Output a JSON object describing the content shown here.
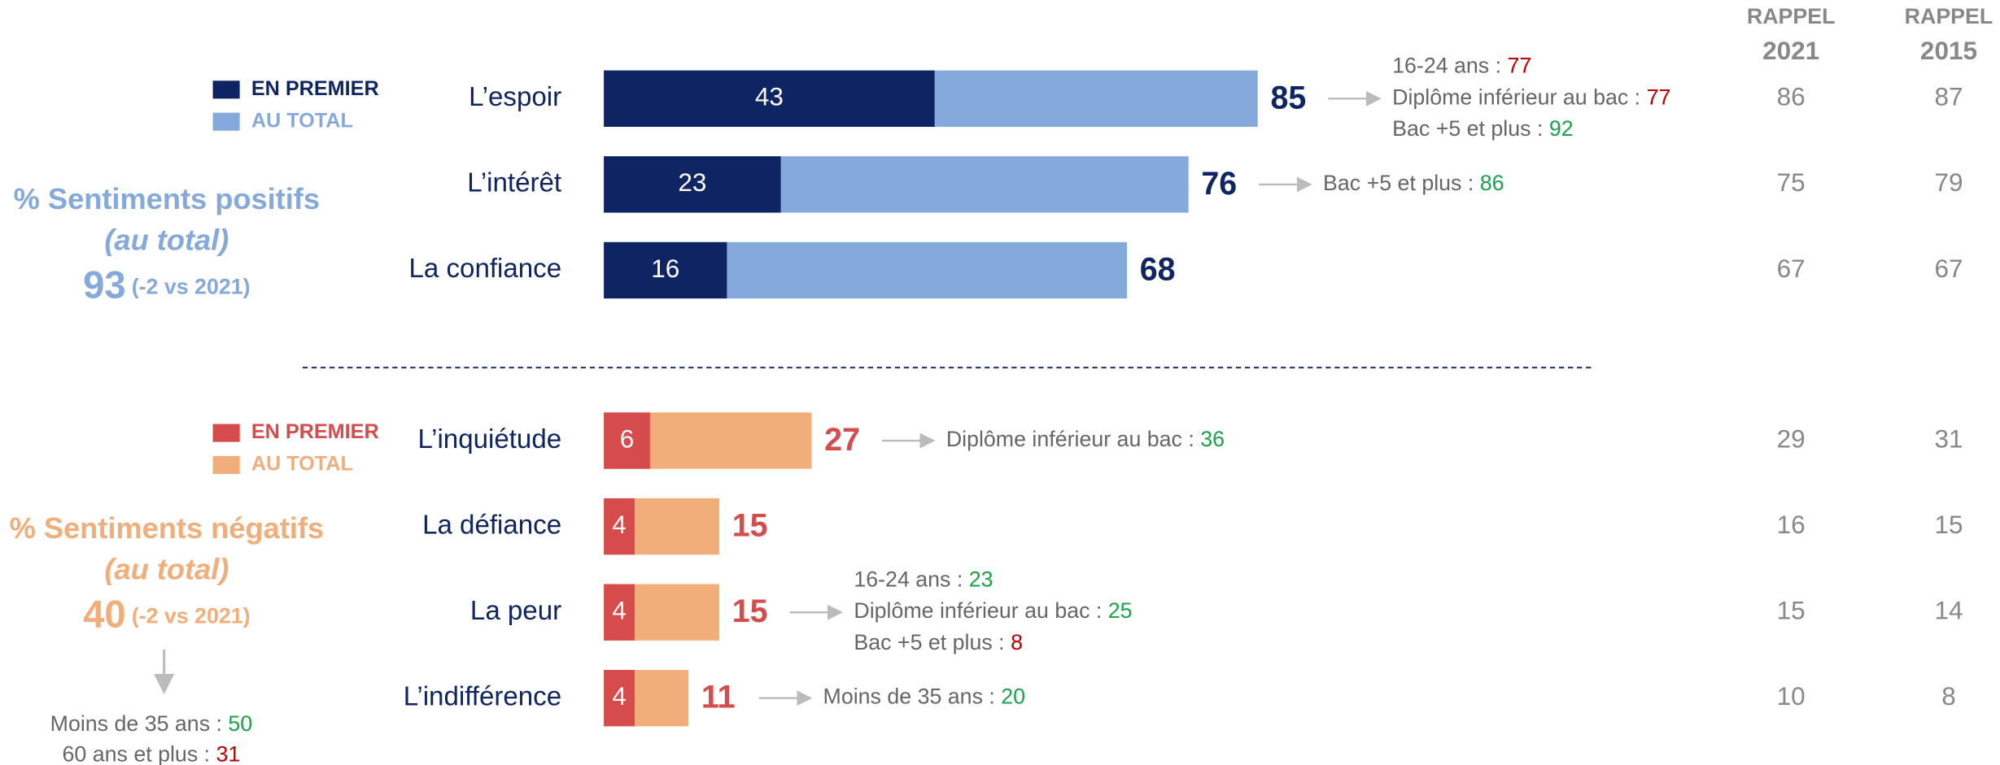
{
  "columns": [
    {
      "label": "RAPPEL",
      "year": "2021"
    },
    {
      "label": "RAPPEL",
      "year": "2015"
    }
  ],
  "chart_data": [
    {
      "type": "bar",
      "categories": [
        "L’espoir",
        "L’intérêt",
        "La confiance"
      ],
      "series": [
        {
          "name": "EN PREMIER",
          "color": "#0f2563",
          "values": [
            43,
            23,
            16
          ]
        },
        {
          "name": "AU TOTAL",
          "color": "#86a9dc",
          "values": [
            85,
            76,
            68
          ]
        }
      ],
      "total_color": "#0f2563",
      "summary": {
        "title": "% Sentiments positifs",
        "subtitle": "(au total)",
        "value": 93,
        "change": "(-2 vs 2021)",
        "color": "#86a9dc",
        "notes": []
      },
      "recall": [
        [
          86,
          75,
          67
        ],
        [
          87,
          79,
          67
        ]
      ],
      "notes": [
        [
          {
            "label": "16-24 ans :",
            "value": 77,
            "color": "#c00000"
          },
          {
            "label": "Diplôme inférieur au bac :",
            "value": 77,
            "color": "#c00000"
          },
          {
            "label": "Bac +5 et plus :",
            "value": 92,
            "color": "#1aa34a"
          }
        ],
        [
          {
            "label": "Bac +5 et plus :",
            "value": 86,
            "color": "#1aa34a"
          }
        ],
        []
      ]
    },
    {
      "type": "bar",
      "categories": [
        "L’inquiétude",
        "La défiance",
        "La peur",
        "L’indifférence"
      ],
      "series": [
        {
          "name": "EN PREMIER",
          "color": "#d64b4b",
          "values": [
            6,
            4,
            4,
            4
          ]
        },
        {
          "name": "AU TOTAL",
          "color": "#f1ae7a",
          "values": [
            27,
            15,
            15,
            11
          ]
        }
      ],
      "total_color": "#d64b4b",
      "summary": {
        "title": "% Sentiments négatifs",
        "subtitle": "(au total)",
        "value": 40,
        "change": "(-2 vs 2021)",
        "color": "#f1ae7a",
        "notes": [
          {
            "label": "Moins de 35 ans :",
            "value": 50,
            "color": "#1aa34a"
          },
          {
            "label": "60 ans et plus :",
            "value": 31,
            "color": "#c00000"
          }
        ]
      },
      "recall": [
        [
          29,
          16,
          15,
          10
        ],
        [
          31,
          15,
          14,
          8
        ]
      ],
      "notes": [
        [
          {
            "label": "Diplôme inférieur au bac :",
            "value": 36,
            "color": "#1aa34a"
          }
        ],
        [],
        [
          {
            "label": "16-24 ans :",
            "value": 23,
            "color": "#1aa34a"
          },
          {
            "label": "Diplôme inférieur au bac :",
            "value": 25,
            "color": "#1aa34a"
          },
          {
            "label": "Bac +5 et plus :",
            "value": 8,
            "color": "#c00000"
          }
        ],
        [
          {
            "label": "Moins de 35 ans :",
            "value": 20,
            "color": "#1aa34a"
          }
        ]
      ]
    }
  ]
}
